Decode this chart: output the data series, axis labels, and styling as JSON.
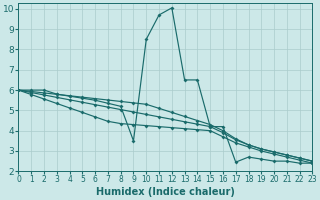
{
  "xlabel": "Humidex (Indice chaleur)",
  "xlim": [
    0,
    23
  ],
  "ylim": [
    2,
    10.3
  ],
  "yticks": [
    2,
    3,
    4,
    5,
    6,
    7,
    8,
    9,
    10
  ],
  "xticks": [
    0,
    1,
    2,
    3,
    4,
    5,
    6,
    7,
    8,
    9,
    10,
    11,
    12,
    13,
    14,
    15,
    16,
    17,
    18,
    19,
    20,
    21,
    22,
    23
  ],
  "bg_color": "#cce8e8",
  "line_color": "#1a6b6b",
  "grid_color": "#aacccc",
  "series": [
    {
      "x": [
        0,
        1,
        2,
        3,
        4,
        5,
        6,
        7,
        8,
        9,
        10,
        11,
        12,
        13,
        14,
        15,
        16,
        17,
        18,
        19,
        20,
        21,
        22,
        23
      ],
      "y": [
        6.0,
        6.0,
        6.0,
        5.8,
        5.7,
        5.6,
        5.5,
        5.35,
        5.2,
        3.5,
        8.5,
        9.7,
        10.05,
        6.5,
        6.5,
        4.2,
        4.2,
        2.45,
        2.7,
        2.6,
        2.5,
        2.5,
        2.4,
        2.4
      ]
    },
    {
      "x": [
        0,
        1,
        2,
        3,
        4,
        5,
        6,
        7,
        8,
        9,
        10,
        11,
        12,
        13,
        14,
        15,
        16,
        17,
        18,
        19,
        20,
        21,
        22,
        23
      ],
      "y": [
        6.0,
        5.88,
        5.76,
        5.64,
        5.52,
        5.4,
        5.28,
        5.16,
        5.04,
        4.92,
        4.8,
        4.68,
        4.56,
        4.44,
        4.32,
        4.2,
        3.9,
        3.55,
        3.3,
        3.1,
        2.95,
        2.8,
        2.65,
        2.5
      ]
    },
    {
      "x": [
        0,
        1,
        2,
        3,
        4,
        5,
        6,
        7,
        8,
        9,
        10,
        11,
        12,
        13,
        14,
        15,
        16,
        17,
        18,
        19,
        20,
        21,
        22,
        23
      ],
      "y": [
        6.0,
        5.93,
        5.86,
        5.79,
        5.72,
        5.65,
        5.58,
        5.51,
        5.44,
        5.37,
        5.3,
        5.1,
        4.9,
        4.7,
        4.5,
        4.3,
        4.0,
        3.6,
        3.3,
        3.1,
        2.95,
        2.8,
        2.65,
        2.5
      ]
    },
    {
      "x": [
        0,
        1,
        2,
        3,
        4,
        5,
        6,
        7,
        8,
        9,
        10,
        11,
        12,
        13,
        14,
        15,
        16,
        17,
        18,
        19,
        20,
        21,
        22,
        23
      ],
      "y": [
        6.0,
        5.78,
        5.56,
        5.34,
        5.12,
        4.9,
        4.68,
        4.46,
        4.35,
        4.3,
        4.25,
        4.2,
        4.15,
        4.1,
        4.05,
        4.0,
        3.7,
        3.4,
        3.2,
        3.0,
        2.85,
        2.7,
        2.55,
        2.4
      ]
    }
  ]
}
